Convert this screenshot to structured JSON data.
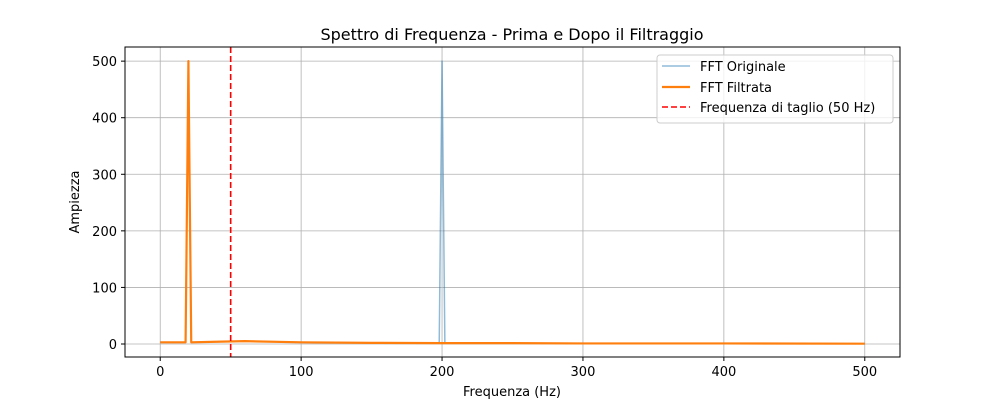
{
  "chart_data": {
    "type": "line",
    "title": "Spettro di Frequenza - Prima e Dopo il Filtraggio",
    "xlabel": "Frequenza (Hz)",
    "ylabel": "Ampiezza",
    "xlim": [
      -25,
      525
    ],
    "ylim": [
      -23,
      525
    ],
    "xticks": [
      0,
      100,
      200,
      300,
      400,
      500
    ],
    "yticks": [
      0,
      100,
      200,
      300,
      400,
      500
    ],
    "grid": true,
    "legend_position": "top-right",
    "series": [
      {
        "name": "FFT Originale",
        "color": "#1f77b4",
        "opacity": 0.5,
        "x": [
          0,
          18,
          19,
          20,
          21,
          22,
          40,
          60,
          100,
          150,
          198,
          199,
          200,
          201,
          202,
          250,
          300,
          400,
          500
        ],
        "y": [
          3,
          3,
          250,
          500,
          250,
          3,
          4,
          5,
          3,
          2,
          2,
          250,
          500,
          250,
          2,
          1.5,
          1,
          1,
          0.5
        ]
      },
      {
        "name": "FFT Filtrata",
        "color": "#ff7f0e",
        "opacity": 1,
        "x": [
          0,
          18,
          19,
          20,
          21,
          22,
          40,
          60,
          100,
          150,
          200,
          250,
          300,
          400,
          500
        ],
        "y": [
          3,
          3,
          250,
          500,
          250,
          3,
          4,
          5,
          3,
          2,
          1.5,
          1.5,
          1,
          1,
          0.5
        ]
      }
    ],
    "reference_line": {
      "name": "Frequenza di taglio (50 Hz)",
      "x": 50,
      "color": "#ff0000"
    }
  }
}
